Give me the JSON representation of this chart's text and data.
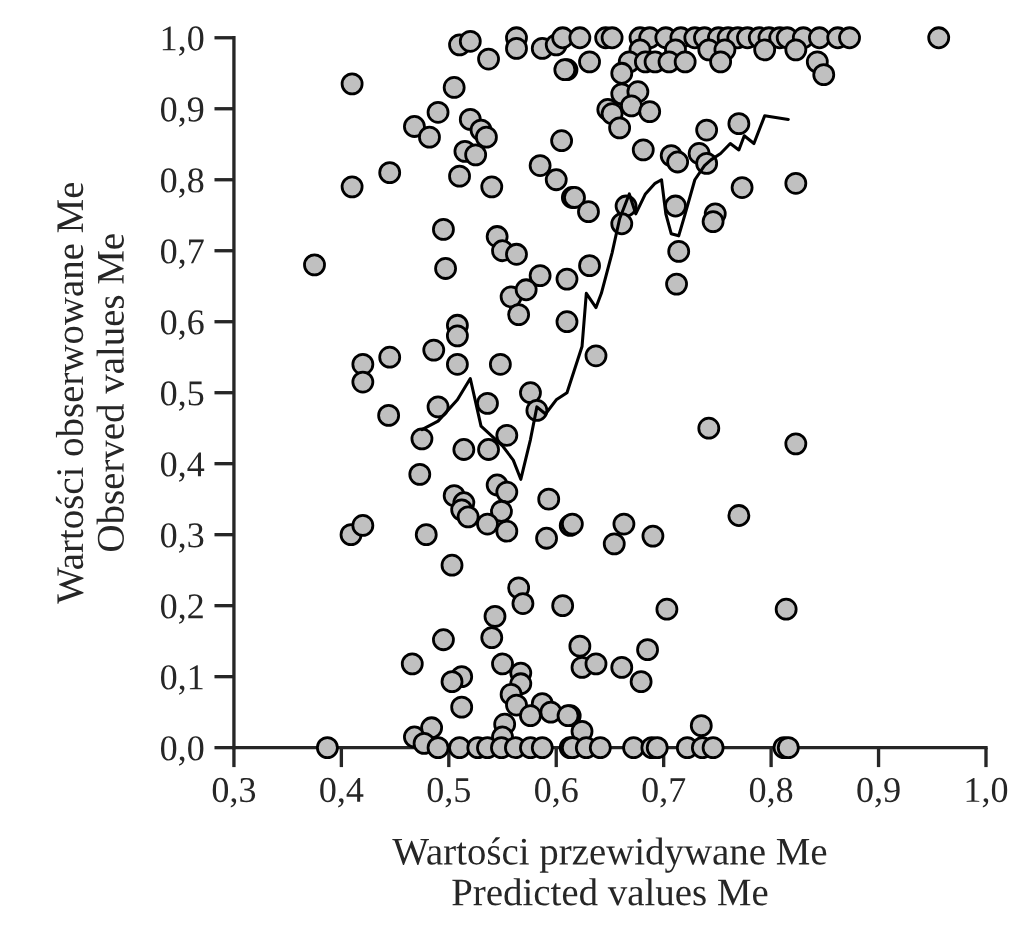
{
  "chart_data": {
    "type": "scatter",
    "xlabel": "Wartości przewidywane Me\nPredicted values Me",
    "ylabel": "Wartości obserwowane Me\nObserved values Me",
    "xlim": [
      0.3,
      1.0
    ],
    "ylim": [
      0.0,
      1.0
    ],
    "xticks": [
      {
        "value": 0.3,
        "label": "0,3"
      },
      {
        "value": 0.4,
        "label": "0,4"
      },
      {
        "value": 0.5,
        "label": "0,5"
      },
      {
        "value": 0.6,
        "label": "0,6"
      },
      {
        "value": 0.7,
        "label": "0,7"
      },
      {
        "value": 0.8,
        "label": "0,8"
      },
      {
        "value": 0.9,
        "label": "0,9"
      },
      {
        "value": 1.0,
        "label": "1,0"
      }
    ],
    "yticks": [
      {
        "value": 0.0,
        "label": "0,0"
      },
      {
        "value": 0.1,
        "label": "0,1"
      },
      {
        "value": 0.2,
        "label": "0,2"
      },
      {
        "value": 0.3,
        "label": "0,3"
      },
      {
        "value": 0.4,
        "label": "0,4"
      },
      {
        "value": 0.5,
        "label": "0,5"
      },
      {
        "value": 0.6,
        "label": "0,6"
      },
      {
        "value": 0.7,
        "label": "0,7"
      },
      {
        "value": 0.8,
        "label": "0,8"
      },
      {
        "value": 0.9,
        "label": "0,9"
      },
      {
        "value": 1.0,
        "label": "1,0"
      }
    ],
    "grid": false,
    "legend": false,
    "marker": "circle",
    "series": [
      {
        "color": "#c0c0c0",
        "x": [
          0.41,
          0.41,
          0.445,
          0.375,
          0.468,
          0.482,
          0.49,
          0.505,
          0.51,
          0.52,
          0.537,
          0.563,
          0.563,
          0.587,
          0.6,
          0.61,
          0.52,
          0.53,
          0.535,
          0.515,
          0.525,
          0.51,
          0.54,
          0.585,
          0.605,
          0.6,
          0.615,
          0.495,
          0.497,
          0.545,
          0.55,
          0.563,
          0.585,
          0.61,
          0.558,
          0.572,
          0.565,
          0.61,
          0.508,
          0.508,
          0.486,
          0.508,
          0.548,
          0.42,
          0.42,
          0.445,
          0.444,
          0.475,
          0.49,
          0.536,
          0.514,
          0.537,
          0.554,
          0.576,
          0.582,
          0.473,
          0.505,
          0.514,
          0.512,
          0.518,
          0.545,
          0.554,
          0.549,
          0.536,
          0.554,
          0.593,
          0.591,
          0.479,
          0.409,
          0.42,
          0.503,
          0.613,
          0.565,
          0.569,
          0.543,
          0.54,
          0.606,
          0.495,
          0.466,
          0.55,
          0.567,
          0.567,
          0.512,
          0.503,
          0.558,
          0.563,
          0.587,
          0.595,
          0.576,
          0.512,
          0.613,
          0.468,
          0.484,
          0.477,
          0.552,
          0.55,
          0.387,
          0.49,
          0.51,
          0.527,
          0.536,
          0.549,
          0.562,
          0.576,
          0.587,
          0.613,
          0.742,
          0.823,
          0.77,
          0.615,
          0.663,
          0.654,
          0.69,
          0.703,
          0.814,
          0.622,
          0.624,
          0.637,
          0.661,
          0.685,
          0.679,
          0.611,
          0.624,
          0.735,
          0.615,
          0.628,
          0.641,
          0.672,
          0.689,
          0.694,
          0.722,
          0.736,
          0.746,
          0.812,
          0.816,
          0.606,
          0.622,
          0.646,
          0.652,
          0.678,
          0.687,
          0.702,
          0.716,
          0.729,
          0.738,
          0.751,
          0.76,
          0.769,
          0.778,
          0.789,
          0.798,
          0.808,
          0.815,
          0.83,
          0.845,
          0.862,
          0.873,
          0.956,
          0.678,
          0.711,
          0.742,
          0.757,
          0.794,
          0.823,
          0.631,
          0.668,
          0.683,
          0.692,
          0.705,
          0.72,
          0.753,
          0.843,
          0.608,
          0.661,
          0.849,
          0.661,
          0.676,
          0.648,
          0.652,
          0.67,
          0.687,
          0.659,
          0.74,
          0.77,
          0.681,
          0.707,
          0.713,
          0.733,
          0.74,
          0.773,
          0.823,
          0.617,
          0.63,
          0.665,
          0.661,
          0.711,
          0.748,
          0.746,
          0.714,
          0.631,
          0.712,
          0.637
        ],
        "values": [
          0.935,
          0.79,
          0.81,
          0.68,
          0.875,
          0.86,
          0.895,
          0.93,
          0.99,
          0.995,
          0.97,
          1.0,
          0.985,
          0.985,
          0.99,
          0.955,
          0.885,
          0.87,
          0.86,
          0.84,
          0.835,
          0.805,
          0.79,
          0.82,
          0.855,
          0.8,
          0.775,
          0.73,
          0.675,
          0.72,
          0.7,
          0.695,
          0.665,
          0.66,
          0.635,
          0.645,
          0.61,
          0.6,
          0.595,
          0.58,
          0.56,
          0.54,
          0.54,
          0.54,
          0.515,
          0.55,
          0.468,
          0.435,
          0.48,
          0.485,
          0.42,
          0.42,
          0.44,
          0.5,
          0.475,
          0.385,
          0.355,
          0.345,
          0.335,
          0.325,
          0.37,
          0.36,
          0.333,
          0.315,
          0.305,
          0.35,
          0.295,
          0.3,
          0.3,
          0.313,
          0.257,
          0.313,
          0.225,
          0.203,
          0.185,
          0.155,
          0.2,
          0.152,
          0.118,
          0.118,
          0.105,
          0.09,
          0.1,
          0.093,
          0.075,
          0.06,
          0.062,
          0.05,
          0.045,
          0.057,
          0.045,
          0.015,
          0.028,
          0.006,
          0.033,
          0.015,
          0.0,
          0.0,
          0.0,
          0.0,
          0.0,
          0.0,
          0.0,
          0.0,
          0.0,
          0.0,
          0.45,
          0.428,
          0.327,
          0.315,
          0.315,
          0.287,
          0.298,
          0.195,
          0.195,
          0.143,
          0.113,
          0.118,
          0.113,
          0.138,
          0.093,
          0.045,
          0.023,
          0.031,
          0.0,
          0.0,
          0.0,
          0.0,
          0.0,
          0.0,
          0.0,
          0.0,
          0.0,
          0.0,
          0.0,
          1.0,
          1.0,
          1.0,
          1.0,
          1.0,
          1.0,
          1.0,
          1.0,
          1.0,
          1.0,
          1.0,
          1.0,
          1.0,
          1.0,
          1.0,
          1.0,
          1.0,
          1.0,
          1.0,
          1.0,
          1.0,
          1.0,
          1.0,
          0.983,
          0.983,
          0.983,
          0.983,
          0.983,
          0.983,
          0.966,
          0.966,
          0.966,
          0.966,
          0.966,
          0.966,
          0.966,
          0.966,
          0.955,
          0.95,
          0.948,
          0.921,
          0.924,
          0.899,
          0.893,
          0.904,
          0.896,
          0.873,
          0.87,
          0.879,
          0.842,
          0.834,
          0.825,
          0.837,
          0.823,
          0.789,
          0.795,
          0.775,
          0.755,
          0.763,
          0.738,
          0.763,
          0.752,
          0.741,
          0.699,
          0.679,
          0.653,
          0.552
        ]
      },
      {
        "type": "line",
        "color": "#000000",
        "marker": "none",
        "line_style": "solid",
        "x": [
          0.475,
          0.49,
          0.508,
          0.52,
          0.53,
          0.55,
          0.56,
          0.567,
          0.576,
          0.582,
          0.59,
          0.6,
          0.61,
          0.624,
          0.628,
          0.637,
          0.642,
          0.652,
          0.659,
          0.668,
          0.674,
          0.683,
          0.692,
          0.698,
          0.702,
          0.707,
          0.714,
          0.72,
          0.729,
          0.738,
          0.744,
          0.753,
          0.762,
          0.77,
          0.775,
          0.784,
          0.794,
          0.816
        ],
        "values": [
          0.448,
          0.46,
          0.49,
          0.52,
          0.453,
          0.425,
          0.405,
          0.378,
          0.434,
          0.48,
          0.47,
          0.49,
          0.5,
          0.565,
          0.64,
          0.62,
          0.64,
          0.697,
          0.745,
          0.78,
          0.752,
          0.78,
          0.795,
          0.8,
          0.752,
          0.724,
          0.721,
          0.752,
          0.8,
          0.82,
          0.828,
          0.837,
          0.851,
          0.842,
          0.862,
          0.851,
          0.89,
          0.885
        ]
      }
    ]
  }
}
